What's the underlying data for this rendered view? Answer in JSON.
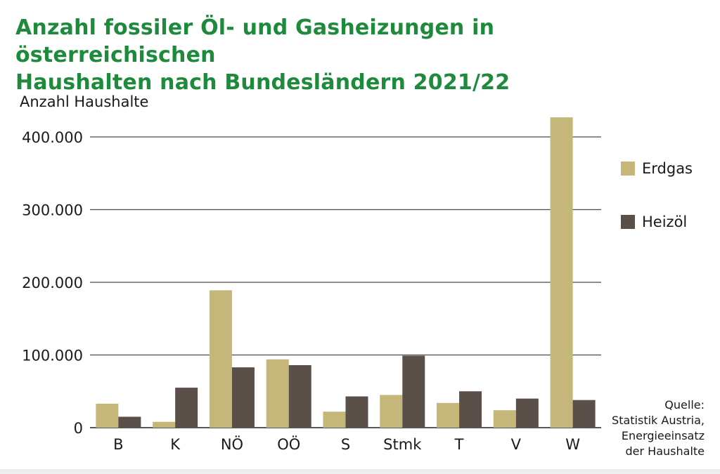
{
  "title_lines": [
    "Anzahl fossiler Öl- und Gasheizungen in österreichischen",
    "Haushalten nach Bundesländern 2021/22"
  ],
  "source_lines": [
    "Quelle:",
    "Statistik Austria,",
    "Energieeinsatz",
    "der Haushalte"
  ],
  "colors": {
    "title": "#1e8a3c",
    "erdgas": "#c5b67a",
    "heizoel": "#5a4f49",
    "grid": "#4a4a4a"
  },
  "chart_data": {
    "type": "bar",
    "title": "Anzahl fossiler Öl- und Gasheizungen in österreichischen Haushalten nach Bundesländern 2021/22",
    "xlabel": "",
    "ylabel": "Anzahl Haushalte",
    "ylim": [
      0,
      430000
    ],
    "yticks": [
      0,
      100000,
      200000,
      300000,
      400000
    ],
    "ytick_labels": [
      "0",
      "100.000",
      "200.000",
      "300.000",
      "400.000"
    ],
    "grid": true,
    "legend_position": "right",
    "categories": [
      "B",
      "K",
      "NÖ",
      "OÖ",
      "S",
      "Stmk",
      "T",
      "V",
      "W"
    ],
    "series": [
      {
        "name": "Erdgas",
        "values": [
          33000,
          8000,
          189000,
          94000,
          22000,
          45000,
          34000,
          24000,
          427000
        ]
      },
      {
        "name": "Heizöl",
        "values": [
          15000,
          55000,
          83000,
          86000,
          43000,
          99000,
          50000,
          40000,
          38000
        ]
      }
    ]
  }
}
